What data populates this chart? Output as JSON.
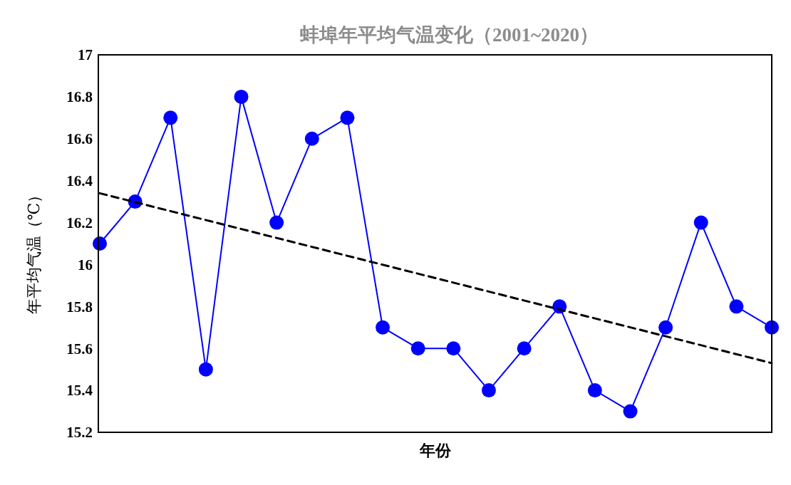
{
  "chart_data": {
    "type": "line",
    "title": "蚌埠年平均气温变化（2001~2020）",
    "xlabel": "年份",
    "ylabel": "年平均气温（℃）",
    "categories": [
      null,
      null,
      null,
      null,
      null,
      null,
      null,
      null,
      null,
      null,
      null,
      null,
      null,
      null,
      null,
      null,
      null,
      null,
      null,
      null
    ],
    "series": [
      {
        "color": "#0000ff",
        "marker": "circle",
        "line_style": "solid",
        "values": [
          16.1,
          16.3,
          16.7,
          15.5,
          16.8,
          16.2,
          16.6,
          16.7,
          15.7,
          15.6,
          15.6,
          15.4,
          15.6,
          15.8,
          15.4,
          15.3,
          15.7,
          16.2,
          15.8,
          15.7
        ]
      },
      {
        "type": "line",
        "color": "#000000",
        "marker": "none",
        "line_style": "dashed",
        "values": [
          16.34,
          null,
          null,
          null,
          null,
          null,
          null,
          null,
          null,
          null,
          null,
          null,
          null,
          null,
          null,
          null,
          null,
          null,
          null,
          15.53
        ]
      }
    ],
    "ylim": [
      15.2,
      17
    ],
    "yticks": [
      15.2,
      15.4,
      15.6,
      15.8,
      16,
      16.2,
      16.4,
      16.6,
      16.8,
      17
    ],
    "grid": false
  }
}
